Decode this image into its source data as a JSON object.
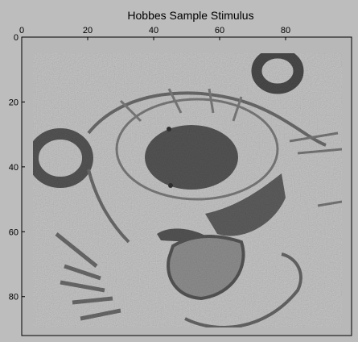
{
  "chart_data": {
    "type": "heatmap",
    "title": "Hobbes Sample Stimulus",
    "colormap": "gray",
    "xlim": [
      0,
      100
    ],
    "ylim": [
      0,
      92
    ],
    "x_ticks": [
      0,
      20,
      40,
      60,
      80
    ],
    "y_ticks": [
      0,
      20,
      40,
      60,
      80
    ],
    "x_axis_position": "top",
    "y_axis_inverted": true,
    "noise_level": "high",
    "background_gray": 0.72,
    "image_content": "noisy grayscale line drawing of Hobbes the tiger face"
  }
}
